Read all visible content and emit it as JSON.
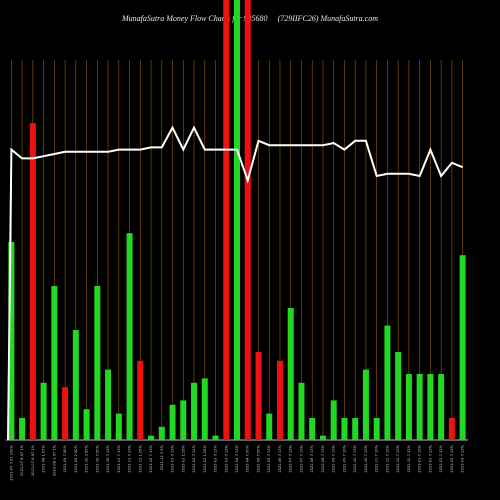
{
  "header": {
    "left": "MunafaSutra  Money Flow  Charts for 935680",
    "right": "(729IIFC26) MunafaSutra.com"
  },
  "chart_data": {
    "type": "bar",
    "xlim": [
      0,
      43
    ],
    "ylim": [
      0,
      100
    ],
    "categories": [
      "2021-07 7.91 100%",
      "2021-07 8.47 1%",
      "2021-07 8.47 1%",
      "2021-08 1.97%",
      "2021-08 1.97 1%",
      "2021-09 7.50%",
      "2021-09 2.50%",
      "2021-10 3.50%",
      "2021-10 7.50%",
      "2021-10 7.13%",
      "2021-11 7.13%",
      "2021-11 7.13%",
      "2021-11 1.25%",
      "2021-12 7.13%",
      "2021-12 3.5%",
      "2022-01 7.13%",
      "2022-01 1.25%",
      "2022-02 7.12%",
      "2022-02 1.25%",
      "2022-03 7.13%",
      "2022-03 7.13%",
      "2022-04 7.13%",
      "2022-04 7.00%",
      "2022-05 7.00%",
      "2022-05 7.13%",
      "2022-06 7.13%",
      "2022-07 7.13%",
      "2022-07 7.13%",
      "2022-08 7.13%",
      "2022-08 7.13%",
      "2022-09 7.13%",
      "2022-09 7.13%",
      "2022-10 7.13%",
      "2022-10 7.13%",
      "2022-11 7.13%",
      "2022-11 7.13%",
      "2022-12 7.13%",
      "2022-12 7.13%",
      "2023-01 7.13%",
      "2023-01 7.13%",
      "2023-02 7.13%",
      "2023-02 7.13%",
      "2023-03 7.13%"
    ],
    "series": [
      {
        "type": "bar",
        "values": [
          45,
          5,
          72,
          13,
          35,
          12,
          25,
          7,
          35,
          16,
          6,
          47,
          18,
          1,
          3,
          8,
          9,
          13,
          14,
          1,
          100,
          100,
          100,
          20,
          6,
          18,
          30,
          13,
          5,
          1,
          9,
          5,
          5,
          16,
          5,
          26,
          20,
          15,
          15,
          15,
          15,
          5,
          42
        ],
        "colors": [
          "green",
          "green",
          "red",
          "green",
          "green",
          "red",
          "green",
          "green",
          "green",
          "green",
          "green",
          "green",
          "red",
          "green",
          "green",
          "green",
          "green",
          "green",
          "green",
          "green",
          "red",
          "green",
          "red",
          "red",
          "green",
          "red",
          "green",
          "green",
          "green",
          "green",
          "green",
          "green",
          "green",
          "green",
          "green",
          "green",
          "green",
          "green",
          "green",
          "green",
          "green",
          "red",
          "green"
        ]
      },
      {
        "type": "line",
        "values": [
          66,
          64,
          64,
          64.5,
          65,
          65.5,
          65.5,
          65.5,
          65.5,
          65.5,
          66,
          66,
          66,
          66.5,
          66.5,
          71,
          66,
          71,
          66,
          66,
          66,
          66,
          59,
          68,
          67,
          67,
          67,
          67,
          67,
          67,
          67.5,
          66,
          68,
          68,
          60,
          60.5,
          60.5,
          60.5,
          60,
          66,
          60,
          63,
          62
        ]
      }
    ]
  },
  "colors": {
    "green": "#22d822",
    "red": "#ee1111",
    "line": "#ffffff",
    "grid": "#9a5a00",
    "baseline": "#ffffff"
  }
}
